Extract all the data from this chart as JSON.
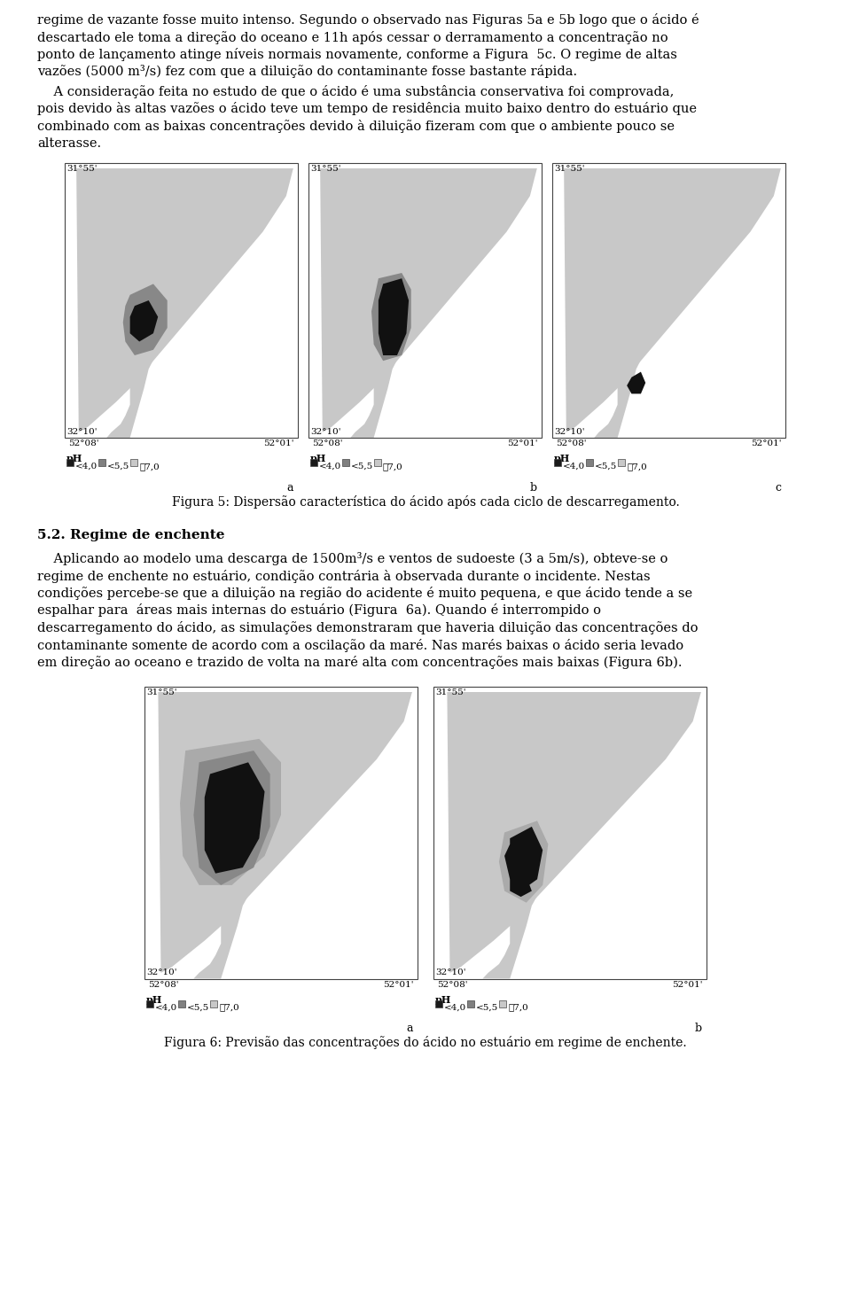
{
  "page_bg": "#ffffff",
  "text_color": "#000000",
  "font_size_body": 10.5,
  "font_size_heading": 11,
  "font_size_caption": 10,
  "fig5_caption": "Figura 5: Dispersão característica do ácido após cada ciclo de descarregamento.",
  "fig6_caption": "Figura 6: Previsão das concentrações do ácido no estuário em regime de enchente.",
  "section_heading": "5.2. Regime de enchente",
  "legend_labels": [
    "<4,0",
    "<5,5",
    "≧7,0"
  ],
  "legend_colors": [
    "#1a1a1a",
    "#808080",
    "#c8c8c8"
  ],
  "coord_top": "31°55'",
  "coord_bottom": "32°10'",
  "coord_left": "52°08'",
  "coord_right": "52°01'",
  "ph_label": "pH",
  "sublabels_fig5": [
    "a",
    "b",
    "c"
  ],
  "sublabels_fig6": [
    "a",
    "b"
  ],
  "para1_lines": [
    "regime de vazante fosse muito intenso. Segundo o observado nas Figuras 5a e 5b logo que o ácido é",
    "descartado ele toma a direção do oceano e 11h após cessar o derramamento a concentração no",
    "ponto de lançamento atinge níveis normais novamente, conforme a Figura  5c. O regime de altas",
    "vazões (5000 m³/s) fez com que a diluição do contaminante fosse bastante rápida."
  ],
  "para2_lines": [
    "    A consideração feita no estudo de que o ácido é uma substância conservativa foi comprovada,",
    "pois devido às altas vazões o ácido teve um tempo de residência muito baixo dentro do estuário que",
    "combinado com as baixas concentrações devido à diluição fizeram com que o ambiente pouco se",
    "alterasse."
  ],
  "body_lines": [
    "    Aplicando ao modelo uma descarga de 1500m³/s e ventos de sudoeste (3 a 5m/s), obteve-se o",
    "regime de enchente no estuário, condição contrária à observada durante o incidente. Nestas",
    "condições percebe-se que a diluição na região do acidente é muito pequena, e que ácido tende a se",
    "espalhar para  áreas mais internas do estuário (Figura  6a). Quando é interrompido o",
    "descarregamento do ácido, as simulações demonstraram que haveria diluição das concentrações do",
    "contaminante somente de acordo com a oscilação da maré. Nas marés baixas o ácido seria levado",
    "em direção ao oceano e trazido de volta na maré alta com concentrações mais baixas (Figura 6b)."
  ]
}
